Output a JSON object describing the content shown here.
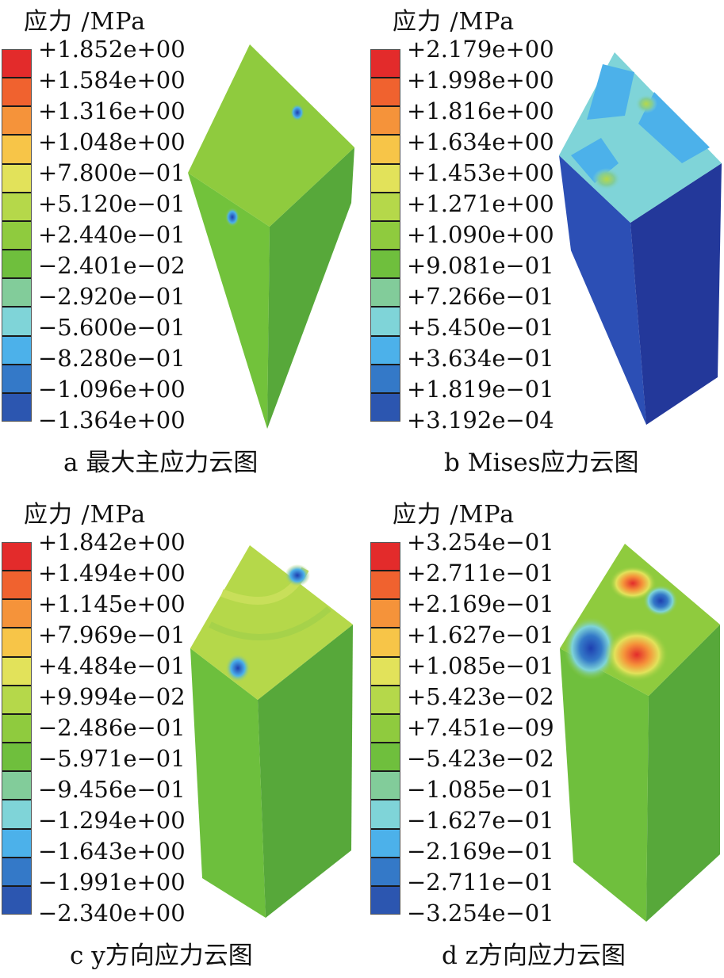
{
  "colorbar_colors": [
    "#e32b2b",
    "#f0622f",
    "#f5933a",
    "#f7c548",
    "#e2e25a",
    "#b5d84a",
    "#8fcb3e",
    "#6fbf3d",
    "#82cc9a",
    "#7fd4d8",
    "#4cb1ea",
    "#3479c8",
    "#2c56b0"
  ],
  "panels": [
    {
      "unit_label": "应力 /MPa",
      "caption": "a 最大主应力云图",
      "labels": [
        "+1.852e+00",
        "+1.584e+00",
        "+1.316e+00",
        "+1.048e+00",
        "+7.800e−01",
        "+5.120e−01",
        "+2.440e−01",
        "−2.401e−02",
        "−2.920e−01",
        "−5.600e−01",
        "−8.280e−01",
        "−1.096e+00",
        "−1.364e+00"
      ]
    },
    {
      "unit_label": "应力 /MPa",
      "caption": "b Mises应力云图",
      "labels": [
        "+2.179e+00",
        "+1.998e+00",
        "+1.816e+00",
        "+1.634e+00",
        "+1.453e+00",
        "+1.271e+00",
        "+1.090e+00",
        "+9.081e−01",
        "+7.266e−01",
        "+5.450e−01",
        "+3.634e−01",
        "+1.819e−01",
        "+3.192e−04"
      ]
    },
    {
      "unit_label": "应力 /MPa",
      "caption": "c y方向应力云图",
      "labels": [
        "+1.842e+00",
        "+1.494e+00",
        "+1.145e+00",
        "+7.969e−01",
        "+4.484e−01",
        "+9.994e−02",
        "−2.486e−01",
        "−5.971e−01",
        "−9.456e−01",
        "−1.294e+00",
        "−1.643e+00",
        "−1.991e+00",
        "−2.340e+00"
      ]
    },
    {
      "unit_label": "应力 /MPa",
      "caption": "d z方向应力云图",
      "labels": [
        "+3.254e−01",
        "+2.711e−01",
        "+2.169e−01",
        "+1.627e−01",
        "+1.085e−01",
        "+5.423e−02",
        "+7.451e−09",
        "−5.423e−02",
        "−1.085e−01",
        "−1.627e−01",
        "−2.169e−01",
        "−2.711e−01",
        "−3.254e−01"
      ]
    }
  ]
}
